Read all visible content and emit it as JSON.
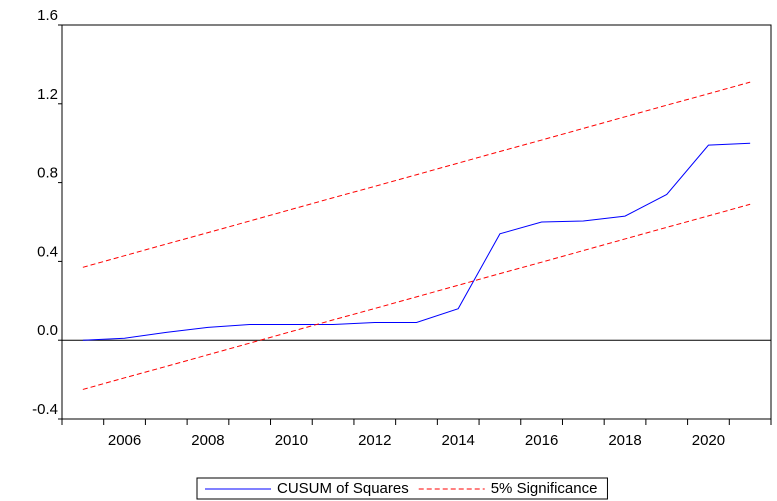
{
  "chart_data": {
    "type": "line",
    "categories": [
      null,
      "2006",
      null,
      "2008",
      null,
      "2010",
      null,
      "2012",
      null,
      "2014",
      null,
      "2016",
      null,
      "2018",
      null,
      "2020",
      null
    ],
    "series": [
      {
        "name": "CUSUM of Squares",
        "color": "#0000ff",
        "dashed": false,
        "values": [
          0.0,
          0.01,
          0.04,
          0.065,
          0.08,
          0.08,
          0.08,
          0.09,
          0.09,
          0.16,
          0.54,
          0.6,
          0.605,
          0.63,
          0.74,
          0.99,
          1.0
        ]
      },
      {
        "name": "5% Significance",
        "color": "#ff0000",
        "dashed": true,
        "values": [
          0.37,
          0.429,
          0.488,
          0.546,
          0.605,
          0.664,
          0.723,
          0.781,
          0.84,
          0.899,
          0.958,
          1.016,
          1.075,
          1.134,
          1.193,
          1.251,
          1.31
        ]
      },
      {
        "color": "#ff0000",
        "dashed": true,
        "values": [
          -0.25,
          -0.191,
          -0.133,
          -0.074,
          -0.015,
          0.044,
          0.103,
          0.161,
          0.22,
          0.279,
          0.338,
          0.396,
          0.455,
          0.514,
          0.573,
          0.631,
          0.69
        ]
      }
    ],
    "ylim": [
      -0.4,
      1.6
    ],
    "yticks": [
      -0.4,
      {
        "value": 0,
        "label": "0.0"
      },
      0.4,
      0.8,
      1.2,
      1.6
    ],
    "zero_line": true,
    "grid": false,
    "legend": "bottom"
  }
}
